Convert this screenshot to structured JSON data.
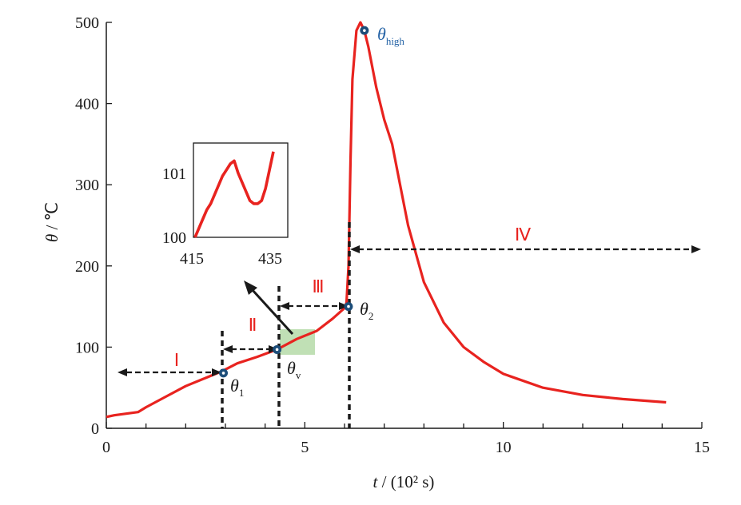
{
  "chart_data": {
    "type": "line",
    "xlabel_symbol": "t",
    "xlabel_unit": " / (10² s)",
    "ylabel_symbol": "θ",
    "ylabel_unit": " / ℃",
    "xlim": [
      0,
      15
    ],
    "ylim": [
      0,
      500
    ],
    "x_ticks": [
      0,
      5,
      10,
      15
    ],
    "y_ticks": [
      0,
      100,
      200,
      300,
      400,
      500
    ],
    "line_color": "#e8231f",
    "series": [
      {
        "x": [
          0.0,
          0.2,
          0.5,
          0.8,
          1.0,
          1.5,
          2.0,
          2.5,
          2.9,
          3.3,
          3.8,
          4.3,
          4.8,
          5.3,
          5.7,
          6.0,
          6.05,
          6.1,
          6.15,
          6.2,
          6.3,
          6.4,
          6.5,
          6.6,
          6.8,
          7.0,
          7.2,
          7.4,
          7.6,
          7.8,
          8.0,
          8.5,
          9.0,
          9.5,
          10.0,
          11.0,
          12.0,
          13.0,
          14.1
        ],
        "y": [
          14,
          16,
          18,
          20,
          26,
          39,
          52,
          62,
          70,
          80,
          88,
          97,
          110,
          120,
          135,
          148,
          155,
          200,
          330,
          430,
          490,
          500,
          490,
          470,
          420,
          380,
          350,
          300,
          250,
          215,
          180,
          130,
          100,
          82,
          67,
          50,
          41,
          36,
          32
        ]
      }
    ],
    "points": [
      {
        "label": "θ",
        "sub": "1",
        "x": 2.95,
        "y": 68
      },
      {
        "label": "θ",
        "sub": "v",
        "x": 4.3,
        "y": 97
      },
      {
        "label": "θ",
        "sub": "2",
        "x": 6.1,
        "y": 150
      },
      {
        "label": "θ",
        "sub": "high",
        "x": 6.5,
        "y": 490
      }
    ],
    "stages": [
      "Ⅰ",
      "Ⅱ",
      "Ⅲ",
      "Ⅳ"
    ],
    "inset": {
      "x_ticks": [
        "415",
        "435"
      ],
      "y_ticks": [
        "101",
        "100"
      ],
      "x": [
        415,
        416,
        417,
        418,
        419,
        420,
        421,
        422,
        423,
        424,
        425,
        426,
        427,
        428,
        429,
        430,
        431,
        432,
        433,
        434,
        435
      ],
      "y": [
        100.0,
        100.15,
        100.3,
        100.45,
        100.55,
        100.7,
        100.85,
        101.0,
        101.1,
        101.2,
        101.25,
        101.05,
        100.9,
        100.75,
        100.6,
        100.55,
        100.55,
        100.6,
        100.8,
        101.1,
        101.4
      ]
    }
  }
}
